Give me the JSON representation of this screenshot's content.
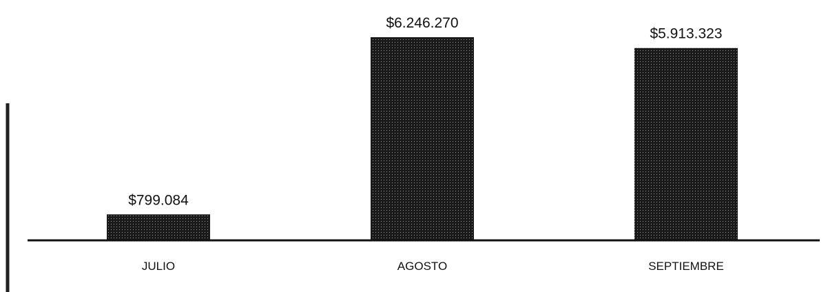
{
  "chart_data": {
    "type": "bar",
    "categories": [
      "JULIO",
      "AGOSTO",
      "SEPTIEMBRE"
    ],
    "values": [
      799084,
      6246270,
      5913323
    ],
    "value_labels": [
      "$799.084",
      "$6.246.270",
      "$5.913.323"
    ],
    "title": "",
    "xlabel": "",
    "ylabel": "",
    "ylim": [
      0,
      6246270
    ],
    "grid": false,
    "bar_color": "#1a1a1a",
    "axis_color": "#111111"
  }
}
